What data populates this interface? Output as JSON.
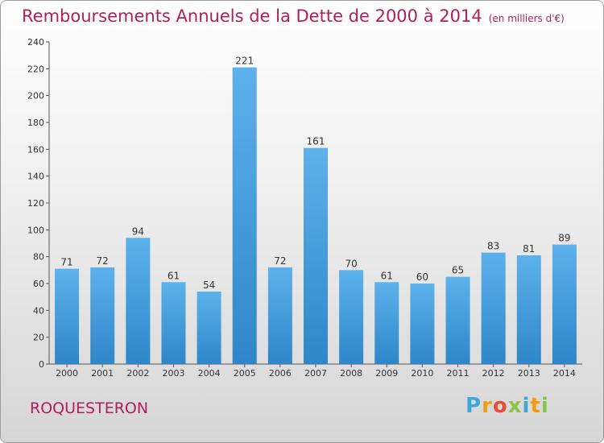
{
  "title": "Remboursements Annuels de la Dette de 2000 à 2014",
  "unit": "(en milliers d'€)",
  "commune": "ROQUESTERON",
  "logo": {
    "letters": [
      "P",
      "r",
      "o",
      "x",
      "i",
      "t",
      "i"
    ],
    "colors": [
      "#3fa9d6",
      "#f39c12",
      "#e74c3c",
      "#8bc34a",
      "#3fa9d6",
      "#f39c12",
      "#8bc34a"
    ]
  },
  "colors": {
    "bar_light": "#5db1ec",
    "bar_dark": "#2f86c8",
    "title": "#b31d5a",
    "axis": "#555555"
  },
  "chart_data": {
    "type": "bar",
    "categories": [
      "2000",
      "2001",
      "2002",
      "2003",
      "2004",
      "2005",
      "2006",
      "2007",
      "2008",
      "2009",
      "2010",
      "2011",
      "2012",
      "2013",
      "2014"
    ],
    "values": [
      71,
      72,
      94,
      61,
      54,
      221,
      72,
      161,
      70,
      61,
      60,
      65,
      83,
      81,
      89
    ],
    "ylim": [
      0,
      240
    ],
    "yticks": [
      0,
      20,
      40,
      60,
      80,
      100,
      120,
      140,
      160,
      180,
      200,
      220,
      240
    ],
    "grid": false,
    "data_labels": true
  }
}
